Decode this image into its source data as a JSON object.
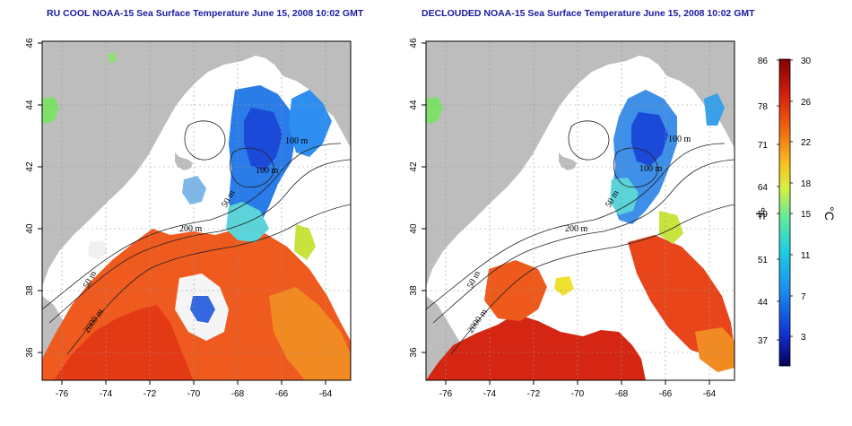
{
  "panels": [
    {
      "id": "left",
      "title": "RU COOL NOAA-15 Sea Surface Temperature June 15, 2008 10:02 GMT",
      "contour_labels": [
        "100 m",
        "100 m",
        "50 m",
        "200 m",
        "50 m",
        "2000 m"
      ]
    },
    {
      "id": "right",
      "title": "DECLOUDED NOAA-15 Sea Surface Temperature June 15, 2008 10:02 GMT",
      "contour_labels": [
        "100 m",
        "100 m",
        "50 m",
        "200 m",
        "50 m",
        "2000 m"
      ]
    }
  ],
  "axes": {
    "lon_ticks": [
      "-76",
      "-74",
      "-72",
      "-70",
      "-68",
      "-66",
      "-64"
    ],
    "lat_ticks": [
      "46",
      "44",
      "42",
      "40",
      "38",
      "36"
    ]
  },
  "colorbar": {
    "fahrenheit_ticks": [
      "86",
      "78",
      "71",
      "64",
      "59",
      "51",
      "44",
      "37"
    ],
    "celsius_ticks": [
      "30",
      "26",
      "22",
      "18",
      "15",
      "11",
      "7",
      "3"
    ],
    "fahrenheit_unit": "°F",
    "celsius_unit": "°C",
    "colors": [
      "#08005a",
      "#1030d0",
      "#1a90f0",
      "#20d0e0",
      "#60e8a0",
      "#d8f040",
      "#f8c020",
      "#f07010",
      "#d82010",
      "#800000"
    ]
  }
}
